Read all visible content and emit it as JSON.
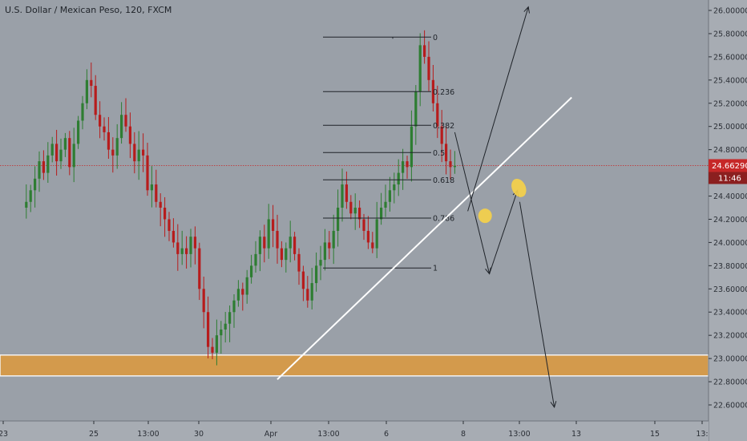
{
  "header": {
    "symbol_title": "U.S. Dollar / Mexican Peso, 120, FXCM"
  },
  "colors": {
    "background": "#9aa0a8",
    "axis_panel": "#a7acb3",
    "candle_up": "#2e7d32",
    "candle_down": "#b71c1c",
    "trendline": "#ffffff",
    "zone_fill": "#d39a4c",
    "zone_border": "#f2f2f2",
    "price_line": "#c62828",
    "price_tag": "#c62828",
    "fib_line": "#1f2329",
    "arrow": "#1f2329",
    "marker": "#f5d04a"
  },
  "chart_data": {
    "type": "candlestick",
    "title": "U.S. Dollar / Mexican Peso, 120, FXCM",
    "ylim": [
      22.5,
      26.1
    ],
    "y_ticks": [
      "26.00000",
      "25.80000",
      "25.60000",
      "25.40000",
      "25.20000",
      "25.00000",
      "24.80000",
      "24.60000",
      "24.40000",
      "24.20000",
      "24.00000",
      "23.80000",
      "23.60000",
      "23.40000",
      "23.20000",
      "23.00000",
      "22.80000",
      "22.60000"
    ],
    "x_ticks": [
      "23",
      "25",
      "13:00",
      "30",
      "Apr",
      "13:00",
      "6",
      "8",
      "13:00",
      "13",
      "15",
      "13:"
    ],
    "last_price": "24.66290",
    "countdown": "11:46",
    "fibonacci": {
      "high": 25.77,
      "low": 23.78,
      "levels": [
        {
          "label": "0",
          "value": 25.77
        },
        {
          "label": "0.236",
          "value": 25.3
        },
        {
          "label": "0.382",
          "value": 25.01
        },
        {
          "label": "0.5",
          "value": 24.775
        },
        {
          "label": "0.618",
          "value": 24.54
        },
        {
          "label": "0.786",
          "value": 24.21
        },
        {
          "label": "1",
          "value": 23.78
        }
      ]
    },
    "support_zone": [
      22.85,
      23.03
    ],
    "trendline": [
      [
        -10,
        22.82
      ],
      [
        58,
        25.25
      ]
    ],
    "arrows": [
      {
        "name": "primary-down-arrow",
        "points": [
          [
            31,
            24.95
          ],
          [
            39,
            23.73
          ]
        ]
      },
      {
        "name": "bounce-up-arrow",
        "points": [
          [
            39,
            23.73
          ],
          [
            45.5,
            24.45
          ]
        ]
      },
      {
        "name": "breakout-up-arrow",
        "points": [
          [
            34,
            24.27
          ],
          [
            48,
            26.03
          ]
        ]
      },
      {
        "name": "drop-down-arrow",
        "points": [
          [
            46,
            24.35
          ],
          [
            54,
            22.58
          ]
        ]
      }
    ],
    "markers": [
      {
        "name": "retest-marker-1",
        "x": 38,
        "y": 24.23
      },
      {
        "name": "retest-marker-2",
        "x": 45.8,
        "y": 24.47
      }
    ],
    "candles": {
      "index_start": -68,
      "close": [
        24.35,
        24.45,
        24.55,
        24.7,
        24.6,
        24.75,
        24.85,
        24.7,
        24.8,
        24.9,
        24.65,
        24.85,
        25.05,
        25.2,
        25.4,
        25.35,
        25.1,
        25.0,
        24.95,
        24.8,
        24.75,
        24.9,
        25.1,
        25.0,
        24.85,
        24.7,
        24.8,
        24.75,
        24.45,
        24.5,
        24.35,
        24.3,
        24.2,
        24.1,
        24.0,
        23.9,
        23.95,
        23.9,
        24.05,
        23.95,
        23.6,
        23.4,
        23.1,
        23.05,
        23.2,
        23.25,
        23.3,
        23.4,
        23.5,
        23.6,
        23.55,
        23.7,
        23.8,
        23.9,
        24.05,
        23.95,
        24.2,
        24.1,
        23.95,
        23.85,
        23.95,
        24.05,
        23.9,
        23.75,
        23.6,
        23.5,
        23.65,
        23.8,
        23.85,
        24.0,
        23.95,
        24.1,
        24.3,
        24.5,
        24.35,
        24.25,
        24.3,
        24.2,
        24.1,
        24.0,
        23.95,
        24.2,
        24.3,
        24.35,
        24.45,
        24.5,
        24.6,
        24.7,
        24.65,
        25.0,
        25.3,
        25.7,
        25.6,
        25.4,
        25.2,
        25.0,
        24.85,
        24.7,
        24.65,
        24.66
      ]
    }
  }
}
